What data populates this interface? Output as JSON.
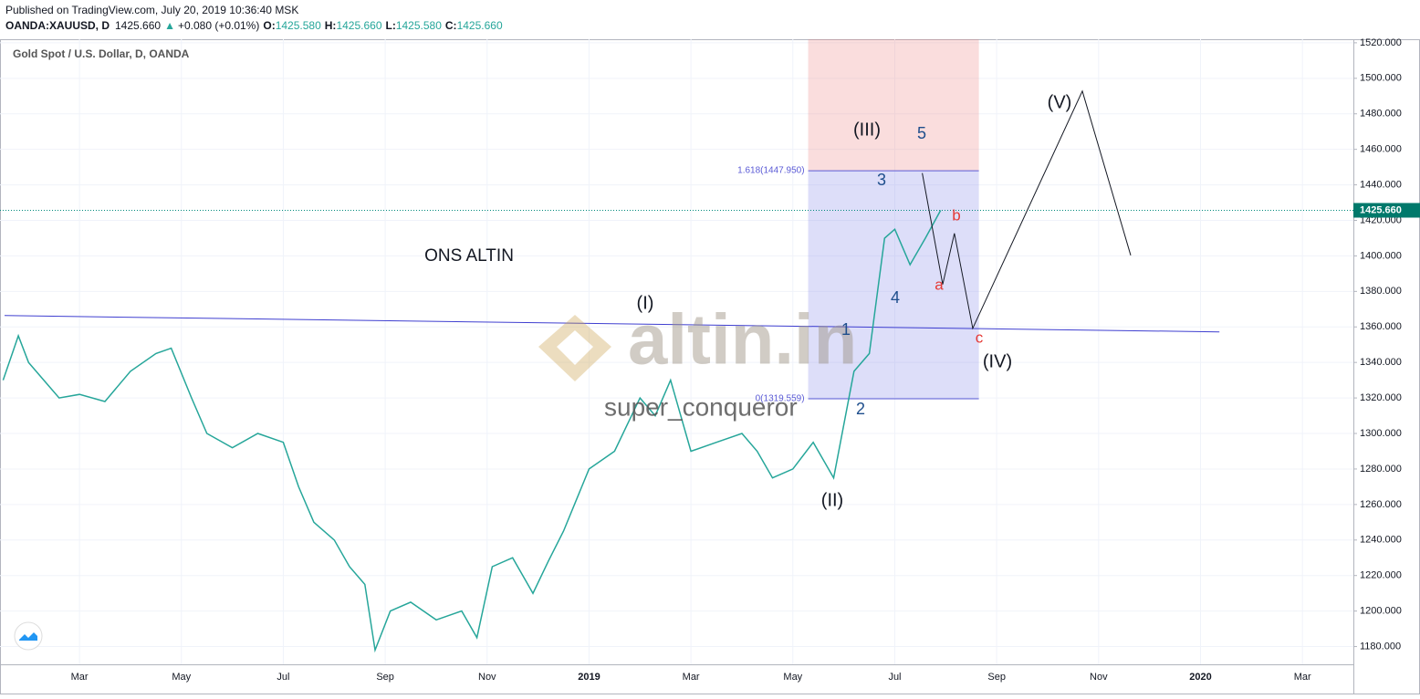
{
  "header": {
    "published": "Published on TradingView.com, July 20, 2019 10:36:40 MSK",
    "symbol": "OANDA:XAUUSD, D",
    "last": "1425.660",
    "arrow": "▲",
    "change": "+0.080 (+0.01%)",
    "o_label": "O:",
    "o": "1425.580",
    "h_label": "H:",
    "h": "1425.660",
    "l_label": "L:",
    "l": "1425.580",
    "c_label": "C:",
    "c": "1425.660"
  },
  "chart_data": {
    "type": "line",
    "title": "Gold Spot / U.S. Dollar, D, OANDA",
    "x": [
      0.5,
      0.8,
      1.0,
      1.3,
      1.6,
      2.0,
      2.5,
      3.0,
      3.5,
      3.8,
      4.2,
      4.5,
      5.0,
      5.5,
      6.0,
      6.3,
      6.6,
      7.0,
      7.3,
      7.6,
      7.8,
      8.1,
      8.5,
      9.0,
      9.5,
      9.8,
      10.1,
      10.5,
      10.9,
      11.2,
      11.5,
      12.0,
      12.5,
      13.0,
      13.3,
      13.6,
      14.0,
      14.5,
      15.0,
      15.3,
      15.6,
      16.0,
      16.4,
      16.8,
      17.2,
      17.5,
      17.8,
      18.0,
      18.3,
      18.6,
      18.9
    ],
    "series": [
      {
        "name": "Gold Spot / U.S. Dollar",
        "color": "#26a69a",
        "values": [
          1330,
          1355,
          1340,
          1330,
          1320,
          1322,
          1318,
          1335,
          1345,
          1348,
          1320,
          1300,
          1292,
          1300,
          1295,
          1270,
          1250,
          1240,
          1225,
          1215,
          1178,
          1200,
          1205,
          1195,
          1200,
          1185,
          1225,
          1230,
          1210,
          1228,
          1245,
          1280,
          1290,
          1320,
          1310,
          1330,
          1290,
          1295,
          1300,
          1290,
          1275,
          1280,
          1295,
          1275,
          1335,
          1345,
          1410,
          1415,
          1395,
          1410,
          1425.66
        ]
      }
    ],
    "projection": {
      "color": "#131722",
      "x": [
        18.54,
        18.94,
        19.17,
        19.53,
        21.68,
        22.63
      ],
      "values": [
        1446.6,
        1383.9,
        1412.7,
        1359.2,
        1492.8,
        1400.3
      ]
    },
    "trendline": {
      "color": "#3f3fd0",
      "x": [
        0.53,
        24.37
      ],
      "values": [
        1366.4,
        1357.2
      ]
    },
    "fib": {
      "x": [
        16.3,
        19.65
      ],
      "levels": [
        {
          "value": 1447.95,
          "label": "1.618(1447.950)"
        },
        {
          "value": 1319.559,
          "label": "0(1319.559)"
        }
      ]
    },
    "last_price": {
      "value": 1425.66,
      "label": "1425.660"
    },
    "annotations": [
      {
        "text": "ONS ALTIN",
        "color": "#131722"
      },
      {
        "text": "(I)",
        "color": "#131722"
      },
      {
        "text": "(II)",
        "color": "#131722"
      },
      {
        "text": "(III)",
        "color": "#131722"
      },
      {
        "text": "(IV)",
        "color": "#131722"
      },
      {
        "text": "(V)",
        "color": "#131722"
      },
      {
        "text": "1",
        "color": "#1e4e8c"
      },
      {
        "text": "2",
        "color": "#1e4e8c"
      },
      {
        "text": "3",
        "color": "#1e4e8c"
      },
      {
        "text": "4",
        "color": "#1e4e8c"
      },
      {
        "text": "5",
        "color": "#1e4e8c"
      },
      {
        "text": "a",
        "color": "#e53935"
      },
      {
        "text": "b",
        "color": "#e53935"
      },
      {
        "text": "c",
        "color": "#e53935"
      }
    ],
    "watermark": "altin.in",
    "author": "super_conqueror",
    "xlim": [
      0.44,
      27.0
    ],
    "ylim": [
      1170,
      1522
    ],
    "xticks": [
      {
        "value": 2,
        "label": "Mar"
      },
      {
        "value": 4,
        "label": "May"
      },
      {
        "value": 6,
        "label": "Jul"
      },
      {
        "value": 8,
        "label": "Sep"
      },
      {
        "value": 10,
        "label": "Nov"
      },
      {
        "value": 12,
        "label": "2019"
      },
      {
        "value": 14,
        "label": "Mar"
      },
      {
        "value": 16,
        "label": "May"
      },
      {
        "value": 18,
        "label": "Jul"
      },
      {
        "value": 20,
        "label": "Sep"
      },
      {
        "value": 22,
        "label": "Nov"
      },
      {
        "value": 24,
        "label": "2020"
      },
      {
        "value": 26,
        "label": "Mar"
      }
    ],
    "yticks": [
      {
        "value": 1180,
        "label": "1180.000"
      },
      {
        "value": 1200,
        "label": "1200.000"
      },
      {
        "value": 1220,
        "label": "1220.000"
      },
      {
        "value": 1240,
        "label": "1240.000"
      },
      {
        "value": 1260,
        "label": "1260.000"
      },
      {
        "value": 1280,
        "label": "1280.000"
      },
      {
        "value": 1300,
        "label": "1300.000"
      },
      {
        "value": 1320,
        "label": "1320.000"
      },
      {
        "value": 1340,
        "label": "1340.000"
      },
      {
        "value": 1360,
        "label": "1360.000"
      },
      {
        "value": 1380,
        "label": "1380.000"
      },
      {
        "value": 1400,
        "label": "1400.000"
      },
      {
        "value": 1420,
        "label": "1420.000"
      },
      {
        "value": 1440,
        "label": "1440.000"
      },
      {
        "value": 1460,
        "label": "1460.000"
      },
      {
        "value": 1480,
        "label": "1480.000"
      },
      {
        "value": 1500,
        "label": "1500.000"
      },
      {
        "value": 1520,
        "label": "1520.000"
      }
    ],
    "grid": true
  }
}
